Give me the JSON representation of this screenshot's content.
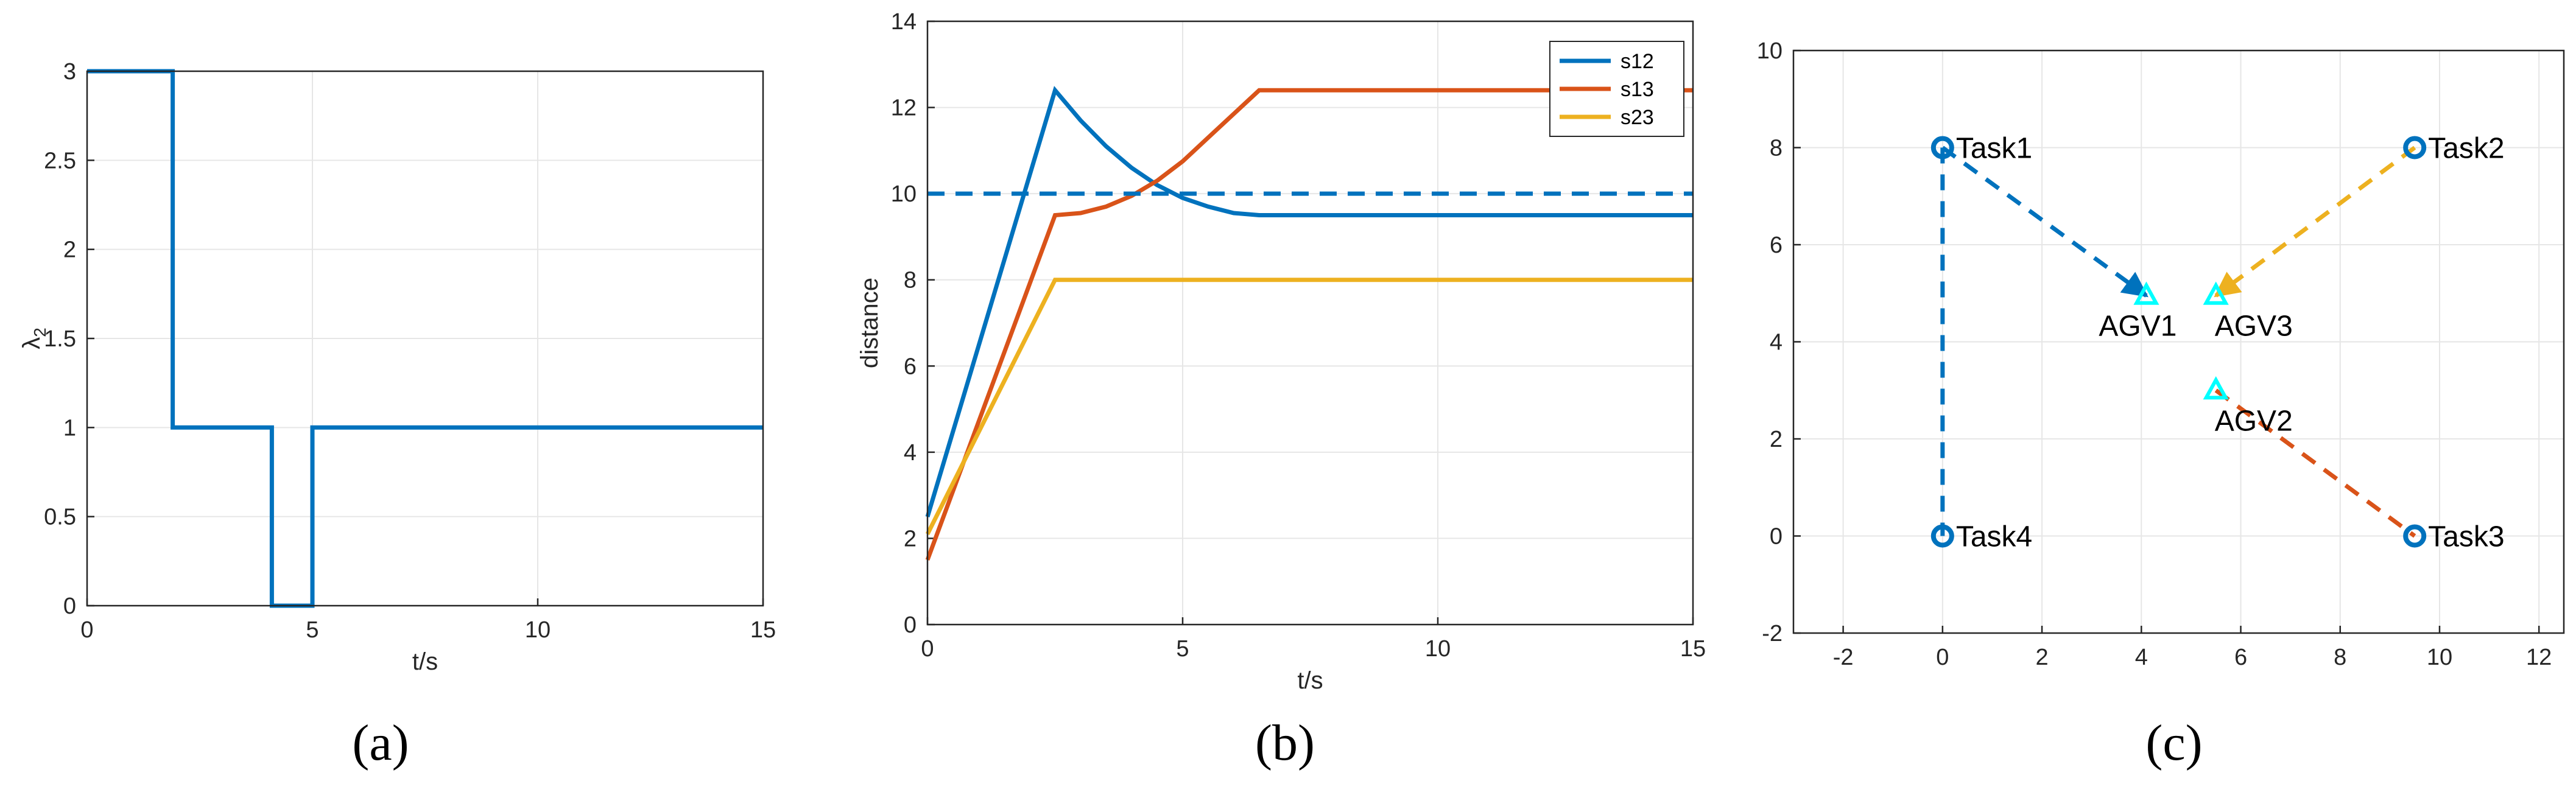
{
  "colors": {
    "blue": "#0072BD",
    "orange": "#D95319",
    "yellow": "#EDB120",
    "cyan": "#00FFFF",
    "grid": "#e6e6e6",
    "axis": "#262626"
  },
  "chart_data": [
    {
      "type": "line",
      "caption": "(a)",
      "xlabel": "t/s",
      "ylabel": "λ",
      "ylabel_sub": "2",
      "xlim": [
        0,
        15
      ],
      "ylim": [
        0,
        3
      ],
      "xticks": [
        0,
        5,
        10,
        15
      ],
      "yticks": [
        0,
        0.5,
        1,
        1.5,
        2,
        2.5,
        3
      ],
      "grid": true,
      "series": [
        {
          "color": "#0072BD",
          "style": "solid",
          "x": [
            0,
            1.9,
            1.9,
            4.1,
            4.1,
            5.0,
            5.0,
            15
          ],
          "y": [
            3,
            3,
            1,
            1,
            0,
            0,
            1,
            1
          ]
        }
      ]
    },
    {
      "type": "line",
      "caption": "(b)",
      "xlabel": "t/s",
      "ylabel": "distance",
      "xlim": [
        0,
        15
      ],
      "ylim": [
        0,
        14
      ],
      "xticks": [
        0,
        5,
        10,
        15
      ],
      "yticks": [
        0,
        2,
        4,
        6,
        8,
        10,
        12,
        14
      ],
      "grid": true,
      "legend": "top-right",
      "series": [
        {
          "name": "s12",
          "color": "#0072BD",
          "style": "solid",
          "x": [
            0,
            2.5,
            3.0,
            3.5,
            4.0,
            4.5,
            5.0,
            5.5,
            6.0,
            6.5,
            15
          ],
          "y": [
            2.5,
            12.4,
            11.7,
            11.1,
            10.6,
            10.2,
            9.9,
            9.7,
            9.55,
            9.5,
            9.5
          ]
        },
        {
          "name": "s13",
          "color": "#D95319",
          "style": "solid",
          "x": [
            0,
            2.5,
            3.0,
            3.5,
            4.0,
            4.5,
            5.0,
            5.5,
            6.0,
            6.5,
            15
          ],
          "y": [
            1.5,
            9.5,
            9.55,
            9.7,
            9.95,
            10.3,
            10.75,
            11.3,
            11.85,
            12.4,
            12.4
          ]
        },
        {
          "name": "s23",
          "color": "#EDB120",
          "style": "solid",
          "x": [
            0,
            2.5,
            15
          ],
          "y": [
            2.1,
            8.0,
            8.0
          ]
        },
        {
          "color": "#0072BD",
          "style": "dashed",
          "x": [
            0,
            15
          ],
          "y": [
            10,
            10
          ]
        }
      ]
    },
    {
      "type": "scatter",
      "caption": "(c)",
      "xlim": [
        -3,
        12.5
      ],
      "ylim": [
        -2,
        10
      ],
      "xticks": [
        -2,
        0,
        2,
        4,
        6,
        8,
        10,
        12
      ],
      "yticks": [
        -2,
        0,
        2,
        4,
        6,
        8,
        10
      ],
      "grid": true,
      "tasks": [
        {
          "label": "Task1",
          "x": 0,
          "y": 8
        },
        {
          "label": "Task2",
          "x": 9.5,
          "y": 8
        },
        {
          "label": "Task3",
          "x": 9.5,
          "y": 0
        },
        {
          "label": "Task4",
          "x": 0,
          "y": 0
        }
      ],
      "agvs": [
        {
          "label": "AGV1",
          "x": 4.1,
          "y": 4.95,
          "label_pos": "below-left"
        },
        {
          "label": "AGV3",
          "x": 5.5,
          "y": 4.95,
          "label_pos": "below-right"
        },
        {
          "label": "AGV2",
          "x": 5.5,
          "y": 3.0,
          "label_pos": "below-right"
        }
      ],
      "paths": [
        {
          "color": "#0072BD",
          "arrow": true,
          "x": [
            0,
            4.1
          ],
          "y": [
            8,
            4.95
          ]
        },
        {
          "color": "#EDB120",
          "arrow": true,
          "x": [
            9.5,
            5.5
          ],
          "y": [
            8,
            4.95
          ]
        },
        {
          "color": "#D95319",
          "arrow": false,
          "x": [
            5.5,
            9.5
          ],
          "y": [
            3.0,
            0
          ]
        },
        {
          "color": "#0072BD",
          "arrow": false,
          "x": [
            0,
            0
          ],
          "y": [
            8,
            0
          ]
        }
      ]
    }
  ]
}
